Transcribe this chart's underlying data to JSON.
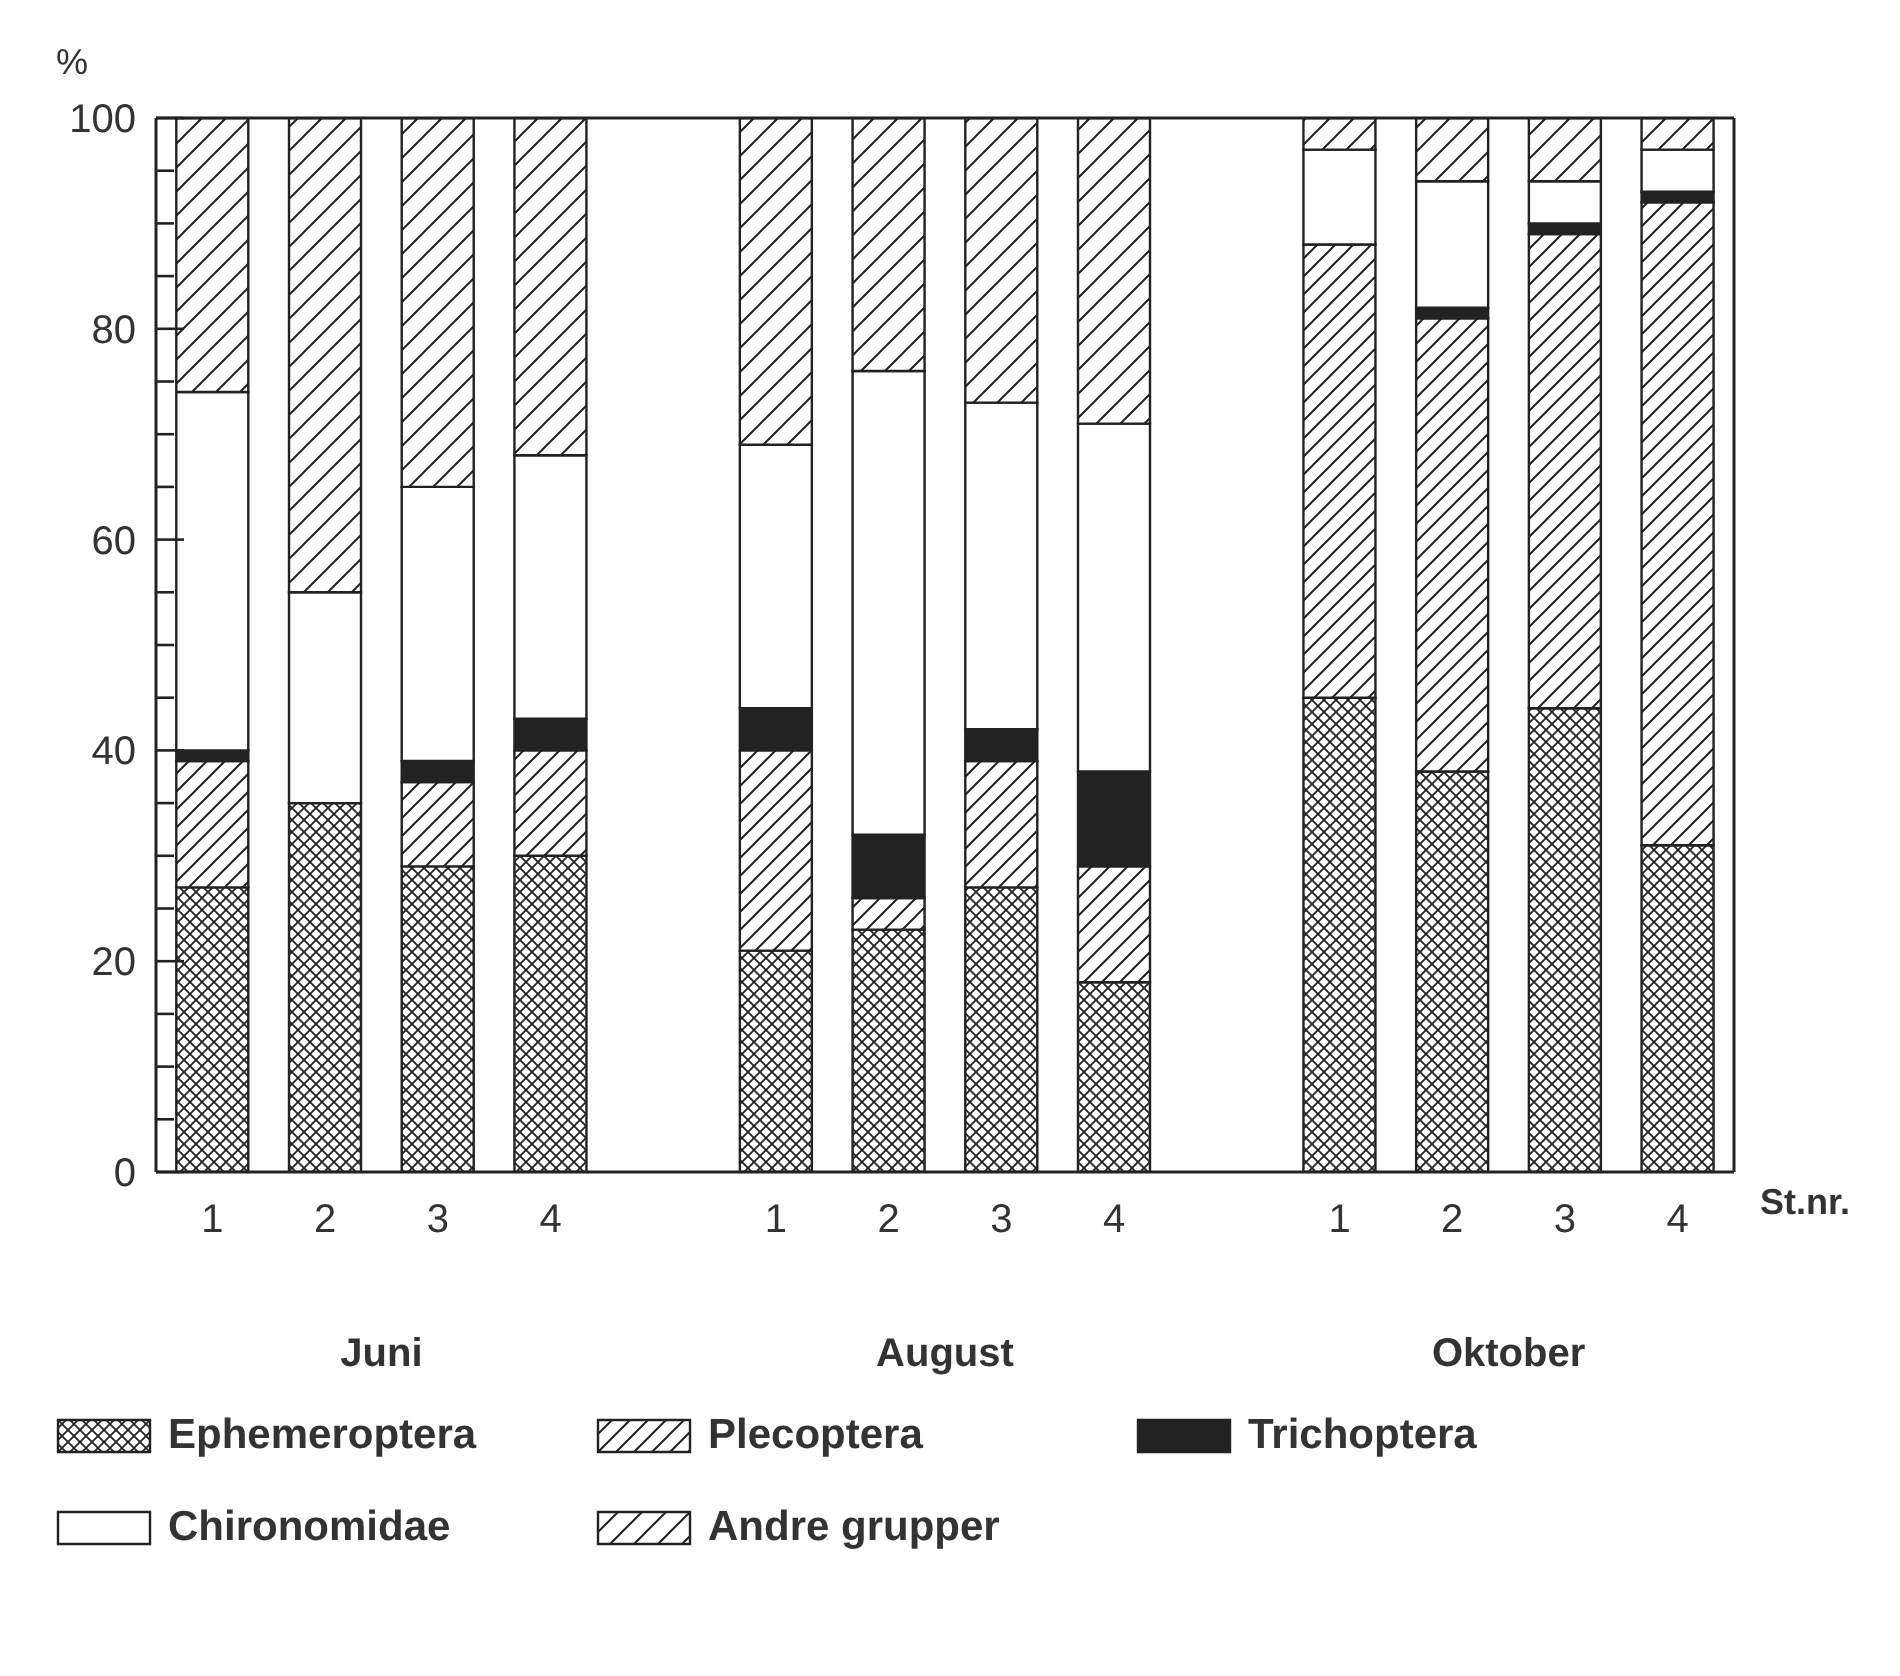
{
  "chart_data": {
    "type": "bar",
    "stacked": true,
    "ylabel": "%",
    "xlabel": "St.nr.",
    "categories": [
      "1",
      "2",
      "3",
      "4",
      null,
      "1",
      "2",
      "3",
      "4",
      null,
      "1",
      "2",
      "3",
      "4"
    ],
    "series": [
      {
        "name": "Ephemeroptera",
        "color": "#222222",
        "values": [
          27,
          35,
          29,
          30,
          null,
          21,
          23,
          27,
          18,
          null,
          45,
          38,
          44,
          31
        ]
      },
      {
        "name": "Plecoptera",
        "color": "#222222",
        "values": [
          12,
          0,
          8,
          10,
          null,
          19,
          3,
          12,
          11,
          null,
          43,
          43,
          45,
          61
        ]
      },
      {
        "name": "Trichoptera",
        "color": "#222222",
        "values": [
          1,
          0,
          2,
          3,
          null,
          4,
          6,
          3,
          9,
          null,
          0,
          1,
          1,
          1
        ]
      },
      {
        "name": "Chironomidae",
        "color": "#222222",
        "values": [
          34,
          20,
          26,
          25,
          null,
          25,
          44,
          31,
          33,
          null,
          9,
          12,
          4,
          4
        ]
      },
      {
        "name": "Andre grupper",
        "color": "#222222",
        "values": [
          26,
          45,
          35,
          32,
          null,
          31,
          24,
          27,
          29,
          null,
          3,
          6,
          6,
          3
        ]
      }
    ],
    "ylim": [
      0,
      100
    ],
    "yticks": [
      0,
      {
        "value": 5,
        "label": null
      },
      {
        "value": 10,
        "label": null
      },
      {
        "value": 15,
        "label": null
      },
      20,
      {
        "value": 25,
        "label": null
      },
      {
        "value": 30,
        "label": null
      },
      {
        "value": 35,
        "label": null
      },
      40,
      {
        "value": 45,
        "label": null
      },
      {
        "value": 50,
        "label": null
      },
      {
        "value": 55,
        "label": null
      },
      60,
      {
        "value": 65,
        "label": null
      },
      {
        "value": 70,
        "label": null
      },
      {
        "value": 75,
        "label": null
      },
      80,
      {
        "value": 85,
        "label": null
      },
      {
        "value": 90,
        "label": null
      },
      {
        "value": 95,
        "label": null
      },
      100
    ],
    "annotations": [
      "Juni",
      "August",
      "Oktober"
    ],
    "legend": "bottom",
    "grid": false
  }
}
